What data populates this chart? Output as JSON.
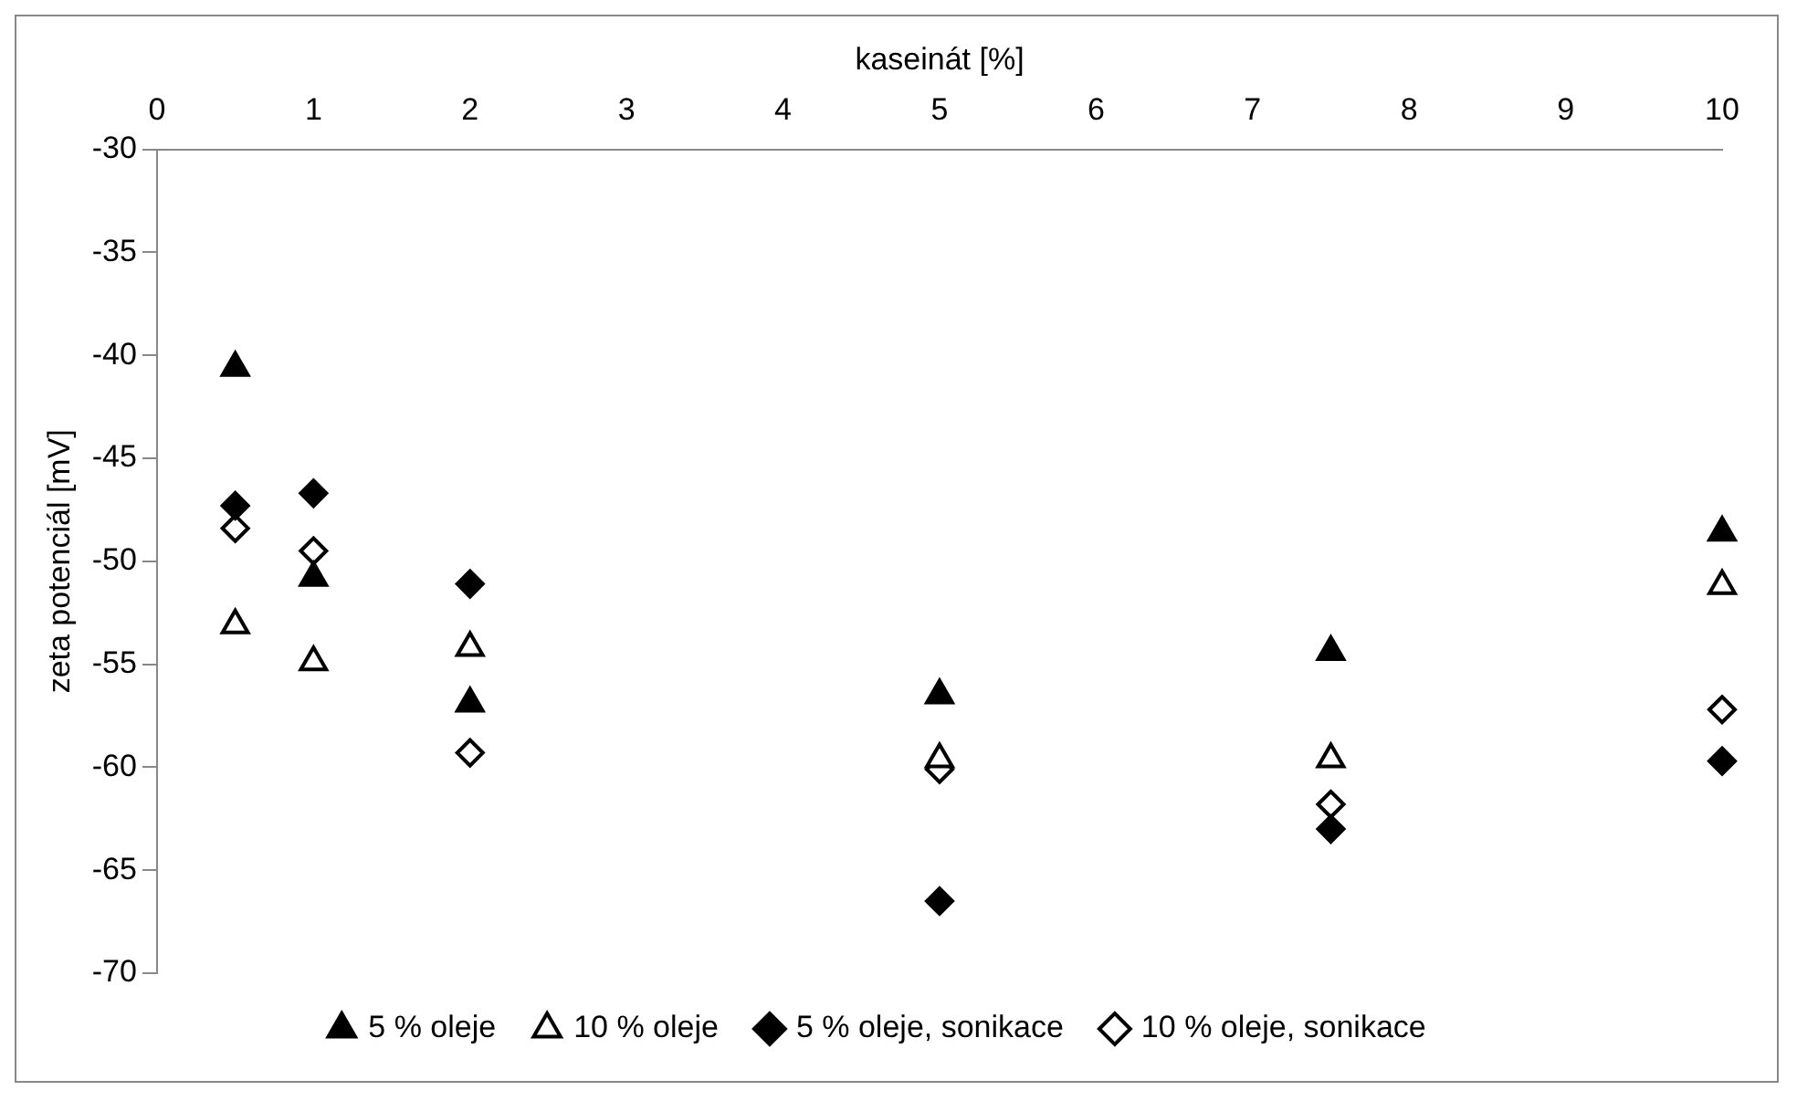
{
  "chart_data": {
    "type": "scatter",
    "xlabel": "kaseinát [%]",
    "ylabel": "zeta potenciál [mV]",
    "x": [
      0.5,
      1,
      2,
      5,
      7.5,
      10
    ],
    "xlim": [
      0,
      10
    ],
    "xticks": [
      0,
      1,
      2,
      3,
      4,
      5,
      6,
      7,
      8,
      9,
      10
    ],
    "ylim": [
      -70,
      -30
    ],
    "yticks": [
      -70,
      -65,
      -60,
      -55,
      -50,
      -45,
      -40,
      -35,
      -30
    ],
    "grid": false,
    "legend": "bottom",
    "series": [
      {
        "name": "5 % oleje",
        "color": "#000000",
        "marker": "triangle",
        "values": [
          -40.6,
          -50.8,
          -56.9,
          -56.5,
          -54.4,
          -48.6
        ]
      },
      {
        "name": "10 % oleje",
        "color": "#ffffff",
        "marker": "triangle",
        "values": [
          -53.1,
          -54.9,
          -54.2,
          -59.6,
          -59.6,
          -51.2
        ]
      },
      {
        "name": "5 % oleje, sonikace",
        "color": "#000000",
        "marker": "diamond",
        "values": [
          -47.3,
          -46.7,
          -51.1,
          -66.5,
          -63.0,
          -59.7
        ]
      },
      {
        "name": "10 % oleje, sonikace",
        "color": "#ffffff",
        "marker": "diamond",
        "values": [
          -48.4,
          -49.5,
          -59.3,
          -60.1,
          -61.8,
          -57.2
        ]
      }
    ]
  }
}
